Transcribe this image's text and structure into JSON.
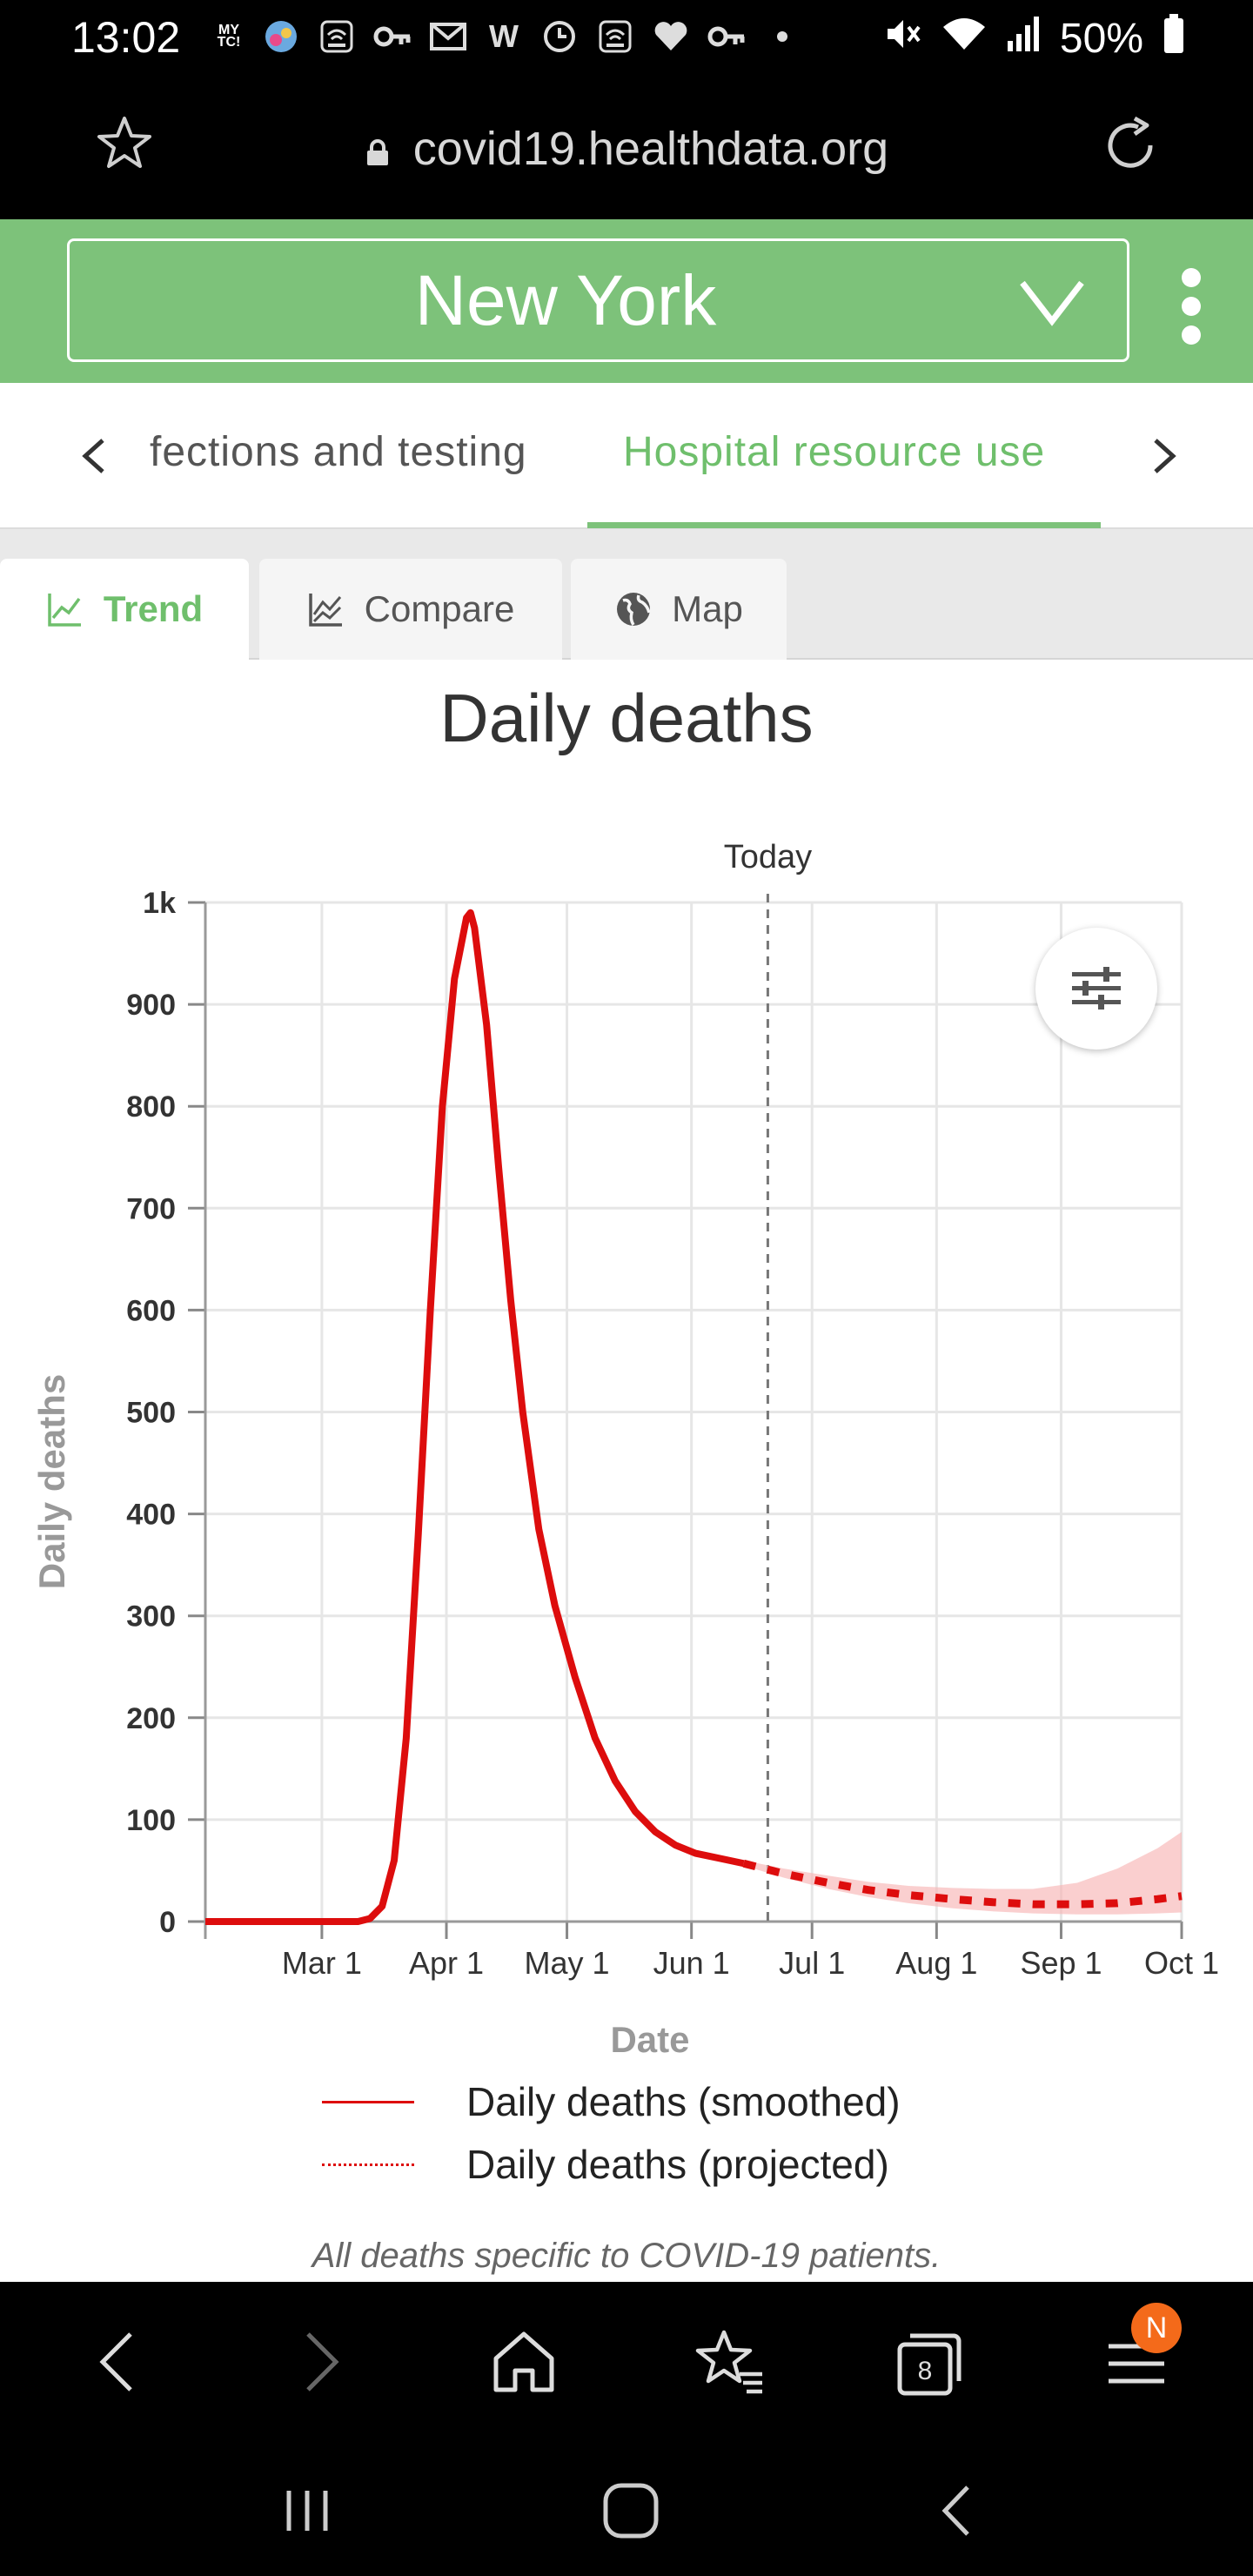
{
  "status_bar": {
    "time": "13:02",
    "battery": "50%",
    "notification_icons": [
      "mytc-icon",
      "app-icon",
      "wifi-calling-icon",
      "key-icon",
      "mail-icon",
      "w-icon",
      "clock-icon",
      "wifi-calling-icon",
      "heart-icon",
      "key-icon",
      "dot-icon"
    ],
    "system_icons": [
      "mute-icon",
      "wifi-icon",
      "signal-icon",
      "battery-icon"
    ]
  },
  "url_bar": {
    "url": "covid19.healthdata.org"
  },
  "location_selector": {
    "value": "New York"
  },
  "section_tabs": [
    {
      "label": "fections and testing",
      "active": false
    },
    {
      "label": "Hospital resource use",
      "active": true
    }
  ],
  "view_tabs": [
    {
      "label": "Trend",
      "active": true
    },
    {
      "label": "Compare",
      "active": false
    },
    {
      "label": "Map",
      "active": false
    }
  ],
  "chart_data": {
    "type": "line",
    "title": "Daily deaths",
    "xlabel": "Date",
    "ylabel": "Daily deaths",
    "ylim": [
      0,
      1000
    ],
    "y_ticks": [
      "0",
      "100",
      "200",
      "300",
      "400",
      "500",
      "600",
      "700",
      "800",
      "900",
      "1k"
    ],
    "x_range": [
      "2020-02-01",
      "2020-10-01"
    ],
    "x_ticks": [
      {
        "date": "2020-03-01",
        "label": "Mar 1"
      },
      {
        "date": "2020-04-01",
        "label": "Apr 1"
      },
      {
        "date": "2020-05-01",
        "label": "May 1"
      },
      {
        "date": "2020-06-01",
        "label": "Jun 1"
      },
      {
        "date": "2020-07-01",
        "label": "Jul 1"
      },
      {
        "date": "2020-08-01",
        "label": "Aug 1"
      },
      {
        "date": "2020-09-01",
        "label": "Sep 1"
      },
      {
        "date": "2020-10-01",
        "label": "Oct 1"
      }
    ],
    "today": {
      "date": "2020-06-20",
      "label": "Today"
    },
    "grid": true,
    "legend_position": "bottom",
    "series": [
      {
        "name": "Daily deaths (smoothed)",
        "style": "solid",
        "color": "#dd0d0d",
        "points": [
          [
            "2020-02-01",
            0
          ],
          [
            "2020-03-10",
            0
          ],
          [
            "2020-03-13",
            3
          ],
          [
            "2020-03-16",
            15
          ],
          [
            "2020-03-19",
            60
          ],
          [
            "2020-03-22",
            180
          ],
          [
            "2020-03-25",
            380
          ],
          [
            "2020-03-28",
            600
          ],
          [
            "2020-03-31",
            800
          ],
          [
            "2020-04-03",
            925
          ],
          [
            "2020-04-06",
            985
          ],
          [
            "2020-04-07",
            990
          ],
          [
            "2020-04-08",
            975
          ],
          [
            "2020-04-11",
            880
          ],
          [
            "2020-04-14",
            740
          ],
          [
            "2020-04-17",
            610
          ],
          [
            "2020-04-20",
            500
          ],
          [
            "2020-04-24",
            385
          ],
          [
            "2020-04-28",
            310
          ],
          [
            "2020-05-03",
            240
          ],
          [
            "2020-05-08",
            180
          ],
          [
            "2020-05-13",
            138
          ],
          [
            "2020-05-18",
            108
          ],
          [
            "2020-05-23",
            88
          ],
          [
            "2020-05-28",
            75
          ],
          [
            "2020-06-02",
            67
          ],
          [
            "2020-06-08",
            62
          ],
          [
            "2020-06-14",
            57
          ]
        ]
      },
      {
        "name": "Daily deaths (projected)",
        "style": "dashed",
        "color": "#dd0d0d",
        "points": [
          [
            "2020-06-14",
            57
          ],
          [
            "2020-06-24",
            47
          ],
          [
            "2020-07-05",
            38
          ],
          [
            "2020-07-15",
            31
          ],
          [
            "2020-07-25",
            26
          ],
          [
            "2020-08-05",
            22
          ],
          [
            "2020-08-15",
            19
          ],
          [
            "2020-08-25",
            17
          ],
          [
            "2020-09-05",
            17
          ],
          [
            "2020-09-15",
            18
          ],
          [
            "2020-09-25",
            22
          ],
          [
            "2020-10-01",
            25
          ]
        ],
        "upper": [
          [
            "2020-06-14",
            60
          ],
          [
            "2020-06-24",
            52
          ],
          [
            "2020-07-05",
            45
          ],
          [
            "2020-07-15",
            39
          ],
          [
            "2020-07-25",
            35
          ],
          [
            "2020-08-05",
            33
          ],
          [
            "2020-08-15",
            32
          ],
          [
            "2020-08-25",
            32
          ],
          [
            "2020-09-05",
            38
          ],
          [
            "2020-09-15",
            52
          ],
          [
            "2020-09-25",
            72
          ],
          [
            "2020-10-01",
            88
          ]
        ],
        "lower": [
          [
            "2020-06-14",
            55
          ],
          [
            "2020-06-24",
            43
          ],
          [
            "2020-07-05",
            32
          ],
          [
            "2020-07-15",
            24
          ],
          [
            "2020-07-25",
            18
          ],
          [
            "2020-08-05",
            13
          ],
          [
            "2020-08-15",
            10
          ],
          [
            "2020-08-25",
            8
          ],
          [
            "2020-09-05",
            7
          ],
          [
            "2020-09-15",
            7
          ],
          [
            "2020-09-25",
            8
          ],
          [
            "2020-10-01",
            9
          ]
        ]
      }
    ]
  },
  "footnote": "All deaths specific to COVID-19 patients.",
  "browser_bar": {
    "tab_count": "8",
    "notification_badge": "N"
  }
}
